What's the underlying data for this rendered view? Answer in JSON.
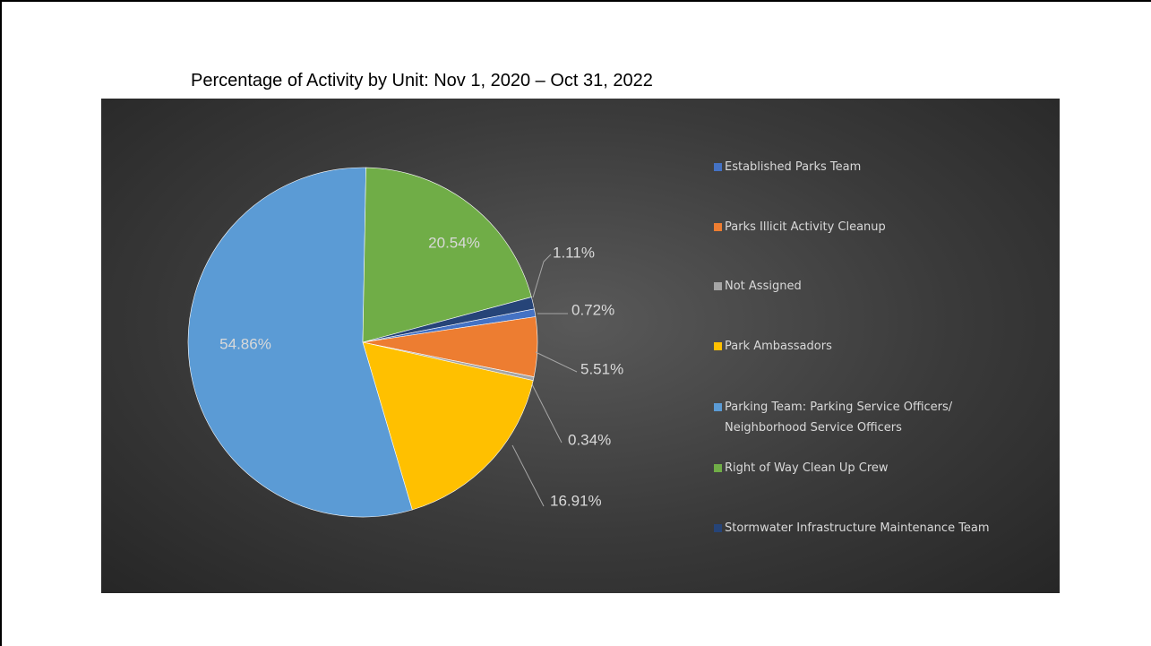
{
  "chart_data": {
    "type": "pie",
    "title": "Percentage of Activity by Unit: Nov 1, 2020 – Oct 31, 2022",
    "categories": [
      "Established Parks Team",
      "Parks Illicit Activity Cleanup",
      "Not Assigned",
      "Park Ambassadors",
      "Parking Team: Parking Service Officers/ Neighborhood Service Officers",
      "Right of Way Clean Up Crew",
      "Stormwater Infrastructure Maintenance Team"
    ],
    "values": [
      0.72,
      5.51,
      0.34,
      16.91,
      54.86,
      20.54,
      1.11
    ],
    "value_labels": [
      "0.72%",
      "5.51%",
      "0.34%",
      "16.91%",
      "54.86%",
      "20.54%",
      "1.11%"
    ],
    "colors": [
      "#4472c4",
      "#ed7d31",
      "#a5a5a5",
      "#ffc000",
      "#5b9bd5",
      "#70ad47",
      "#264478"
    ],
    "legend": "right"
  }
}
